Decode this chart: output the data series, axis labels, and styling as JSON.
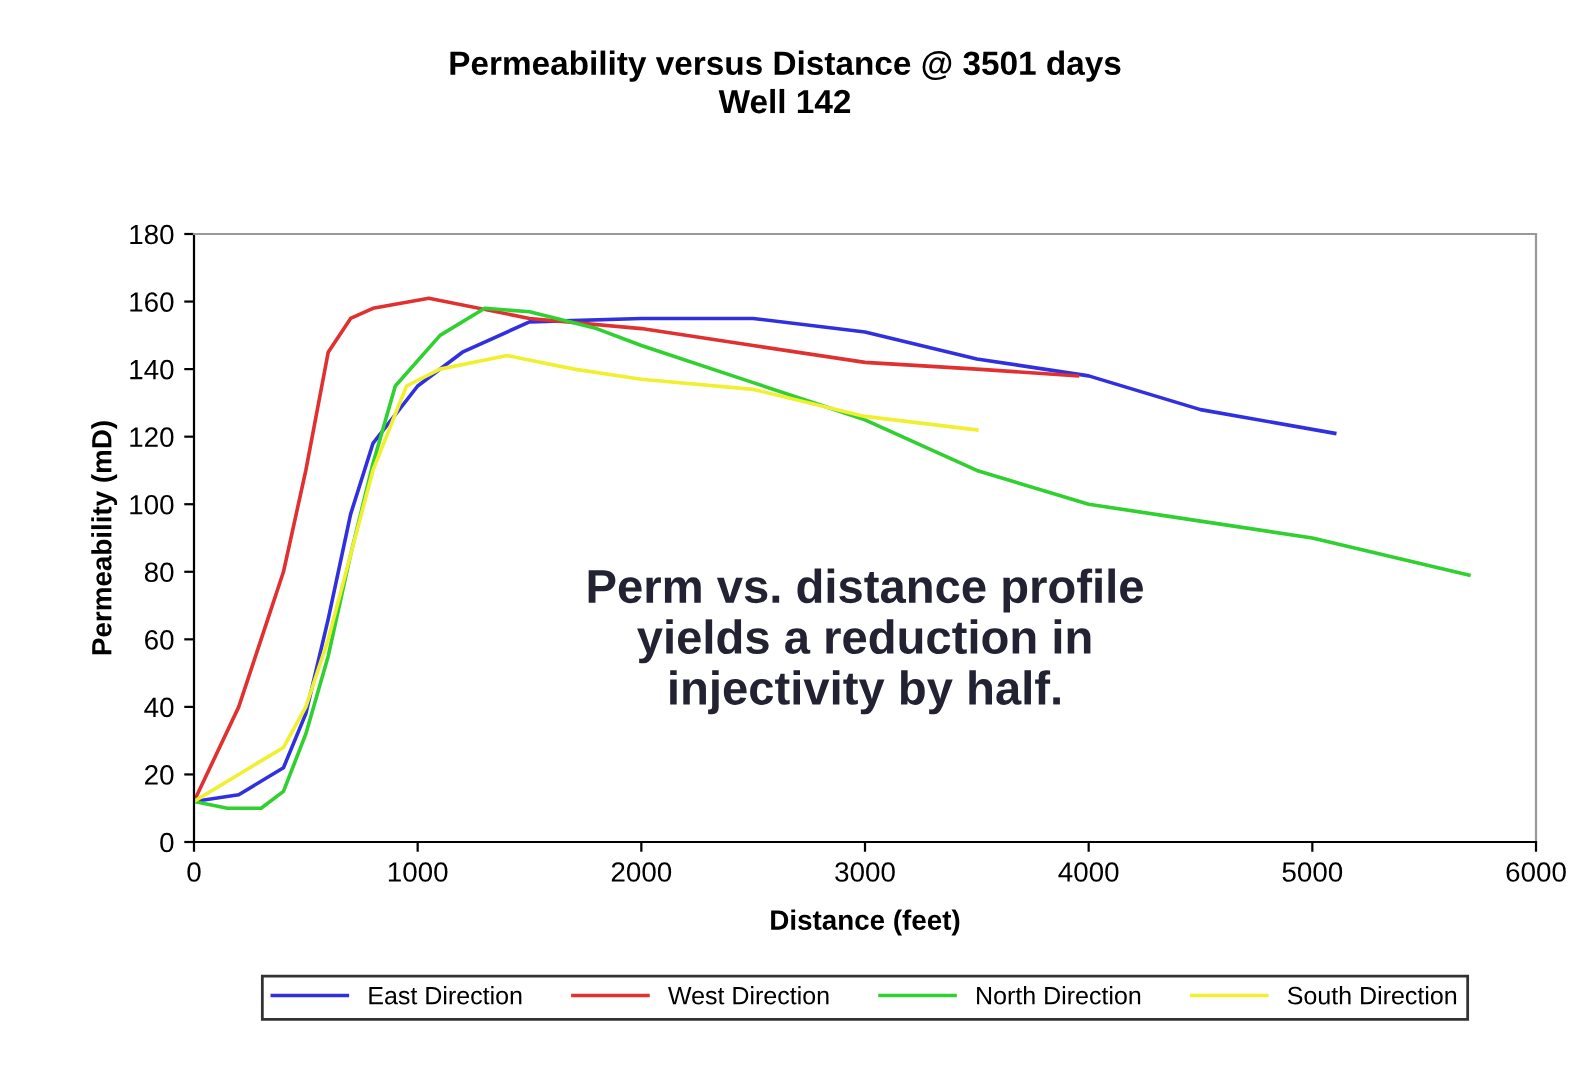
{
  "chart_data": {
    "type": "line",
    "title": "Permeability versus Distance @ 3501 days",
    "subtitle": "Well 142",
    "xlabel": "Distance (feet)",
    "ylabel": "Permeability (mD)",
    "xlim": [
      0,
      6000
    ],
    "xticks": [
      0,
      1000,
      2000,
      3000,
      4000,
      5000,
      6000
    ],
    "ylim": [
      0,
      180
    ],
    "yticks": [
      0,
      20,
      40,
      60,
      80,
      100,
      120,
      140,
      160,
      180
    ],
    "grid": false,
    "legend": "bottom",
    "marker": "none",
    "line_style": "solid",
    "annotations": [
      "Perm vs. distance profile\nyields a reduction in\ninjectivity by half."
    ],
    "series": [
      {
        "name": "East Direction",
        "color": "#3030e0",
        "x": [
          0,
          200,
          400,
          500,
          600,
          700,
          800,
          1000,
          1200,
          1500,
          2000,
          2500,
          3000,
          3500,
          4000,
          4500,
          5100
        ],
        "values": [
          12,
          14,
          22,
          38,
          66,
          97,
          118,
          135,
          145,
          154,
          155,
          155,
          151,
          143,
          138,
          128,
          121
        ]
      },
      {
        "name": "West Direction",
        "color": "#e03030",
        "x": [
          0,
          200,
          300,
          400,
          500,
          600,
          700,
          800,
          1050,
          1500,
          2000,
          2500,
          3000,
          3500,
          3950
        ],
        "values": [
          12,
          40,
          60,
          80,
          110,
          145,
          155,
          158,
          161,
          155,
          152,
          147,
          142,
          140,
          138
        ]
      },
      {
        "name": "North Direction",
        "color": "#30d030",
        "x": [
          0,
          150,
          300,
          400,
          500,
          600,
          700,
          800,
          900,
          1100,
          1300,
          1500,
          1800,
          2000,
          2500,
          3000,
          3500,
          4000,
          4500,
          5000,
          5700
        ],
        "values": [
          12,
          10,
          10,
          15,
          32,
          55,
          85,
          112,
          135,
          150,
          158,
          157,
          152,
          147,
          136,
          125,
          110,
          100,
          95,
          90,
          79
        ]
      },
      {
        "name": "South Direction",
        "color": "#f0f030",
        "x": [
          0,
          200,
          400,
          500,
          600,
          700,
          800,
          950,
          1100,
          1400,
          1700,
          2000,
          2500,
          3000,
          3500
        ],
        "values": [
          12,
          20,
          28,
          40,
          60,
          85,
          110,
          135,
          140,
          144,
          140,
          137,
          134,
          126,
          122
        ]
      }
    ]
  }
}
